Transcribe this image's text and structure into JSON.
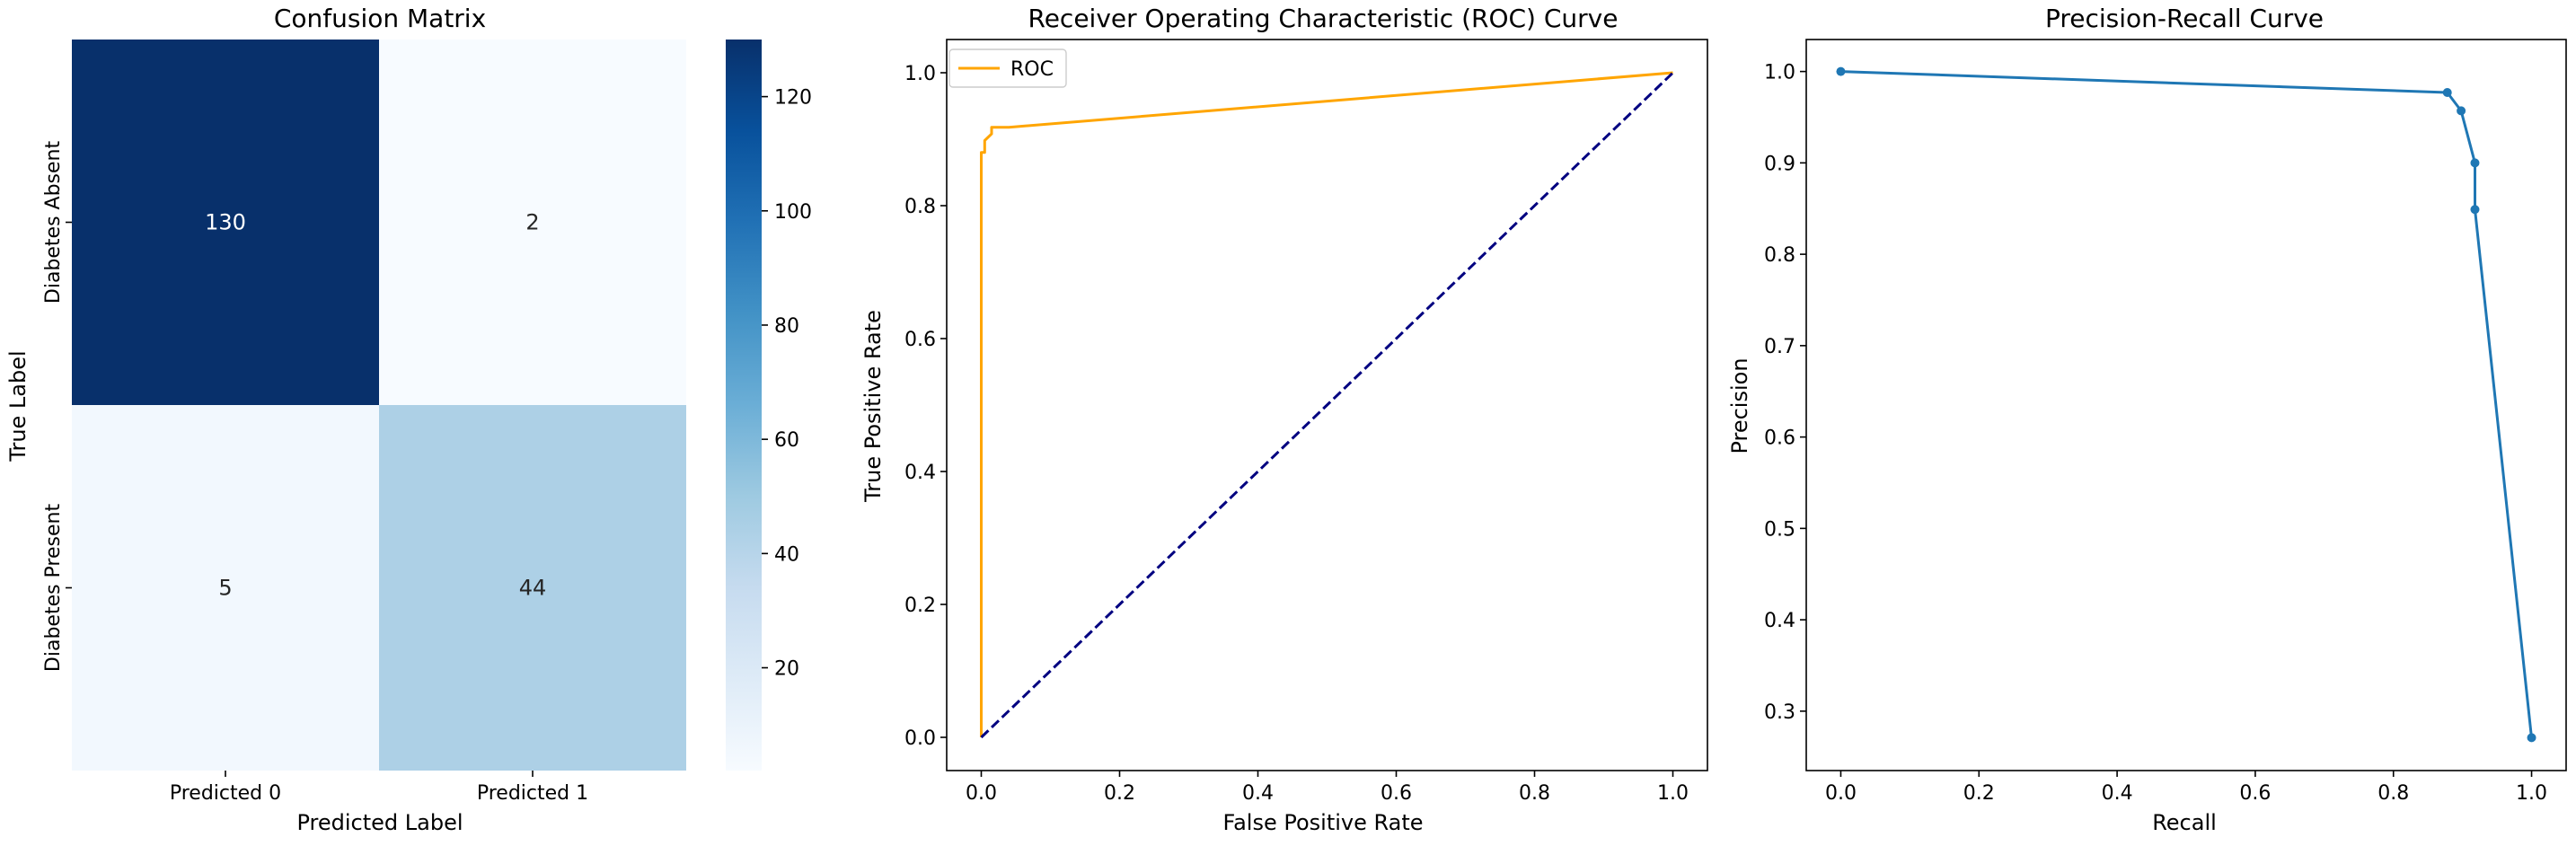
{
  "chart_data": [
    {
      "type": "heatmap",
      "title": "Confusion Matrix",
      "xlabel": "Predicted Label",
      "ylabel": "True Label",
      "x_categories": [
        "Predicted 0",
        "Predicted 1"
      ],
      "y_categories": [
        "Diabetes Absent",
        "Diabetes Present"
      ],
      "values": [
        [
          130,
          2
        ],
        [
          5,
          44
        ]
      ],
      "colormap": "Blues",
      "colorbar": {
        "min": 2,
        "max": 130,
        "ticks": [
          20,
          40,
          60,
          80,
          100,
          120
        ]
      }
    },
    {
      "type": "line",
      "title": "Receiver Operating Characteristic (ROC) Curve",
      "xlabel": "False Positive Rate",
      "ylabel": "True Positive Rate",
      "xlim": [
        -0.05,
        1.05
      ],
      "ylim": [
        -0.05,
        1.05
      ],
      "xticks": [
        0.0,
        0.2,
        0.4,
        0.6,
        0.8,
        1.0
      ],
      "yticks": [
        0.0,
        0.2,
        0.4,
        0.6,
        0.8,
        1.0
      ],
      "legend_position": "top-left",
      "series": [
        {
          "name": "ROC",
          "color": "#FFA500",
          "style": "solid",
          "x": [
            0.0,
            0.0,
            0.005,
            0.005,
            0.015,
            0.015,
            0.03,
            0.04,
            1.0
          ],
          "y": [
            0.0,
            0.88,
            0.88,
            0.898,
            0.908,
            0.918,
            0.918,
            0.918,
            1.0
          ]
        },
        {
          "name": "",
          "color": "#000080",
          "style": "dashed",
          "x": [
            0.0,
            1.0
          ],
          "y": [
            0.0,
            1.0
          ]
        }
      ]
    },
    {
      "type": "line",
      "title": "Precision-Recall Curve",
      "xlabel": "Recall",
      "ylabel": "Precision",
      "xlim": [
        -0.05,
        1.05
      ],
      "ylim": [
        0.235,
        1.035
      ],
      "xticks": [
        0.0,
        0.2,
        0.4,
        0.6,
        0.8,
        1.0
      ],
      "yticks": [
        0.3,
        0.4,
        0.5,
        0.6,
        0.7,
        0.8,
        0.9,
        1.0
      ],
      "series": [
        {
          "name": "",
          "color": "#1f77b4",
          "marker": "dot",
          "x": [
            0.0,
            0.878,
            0.898,
            0.918,
            0.918,
            1.0
          ],
          "y": [
            1.0,
            0.977,
            0.957,
            0.9,
            0.849,
            0.271
          ]
        }
      ]
    }
  ]
}
